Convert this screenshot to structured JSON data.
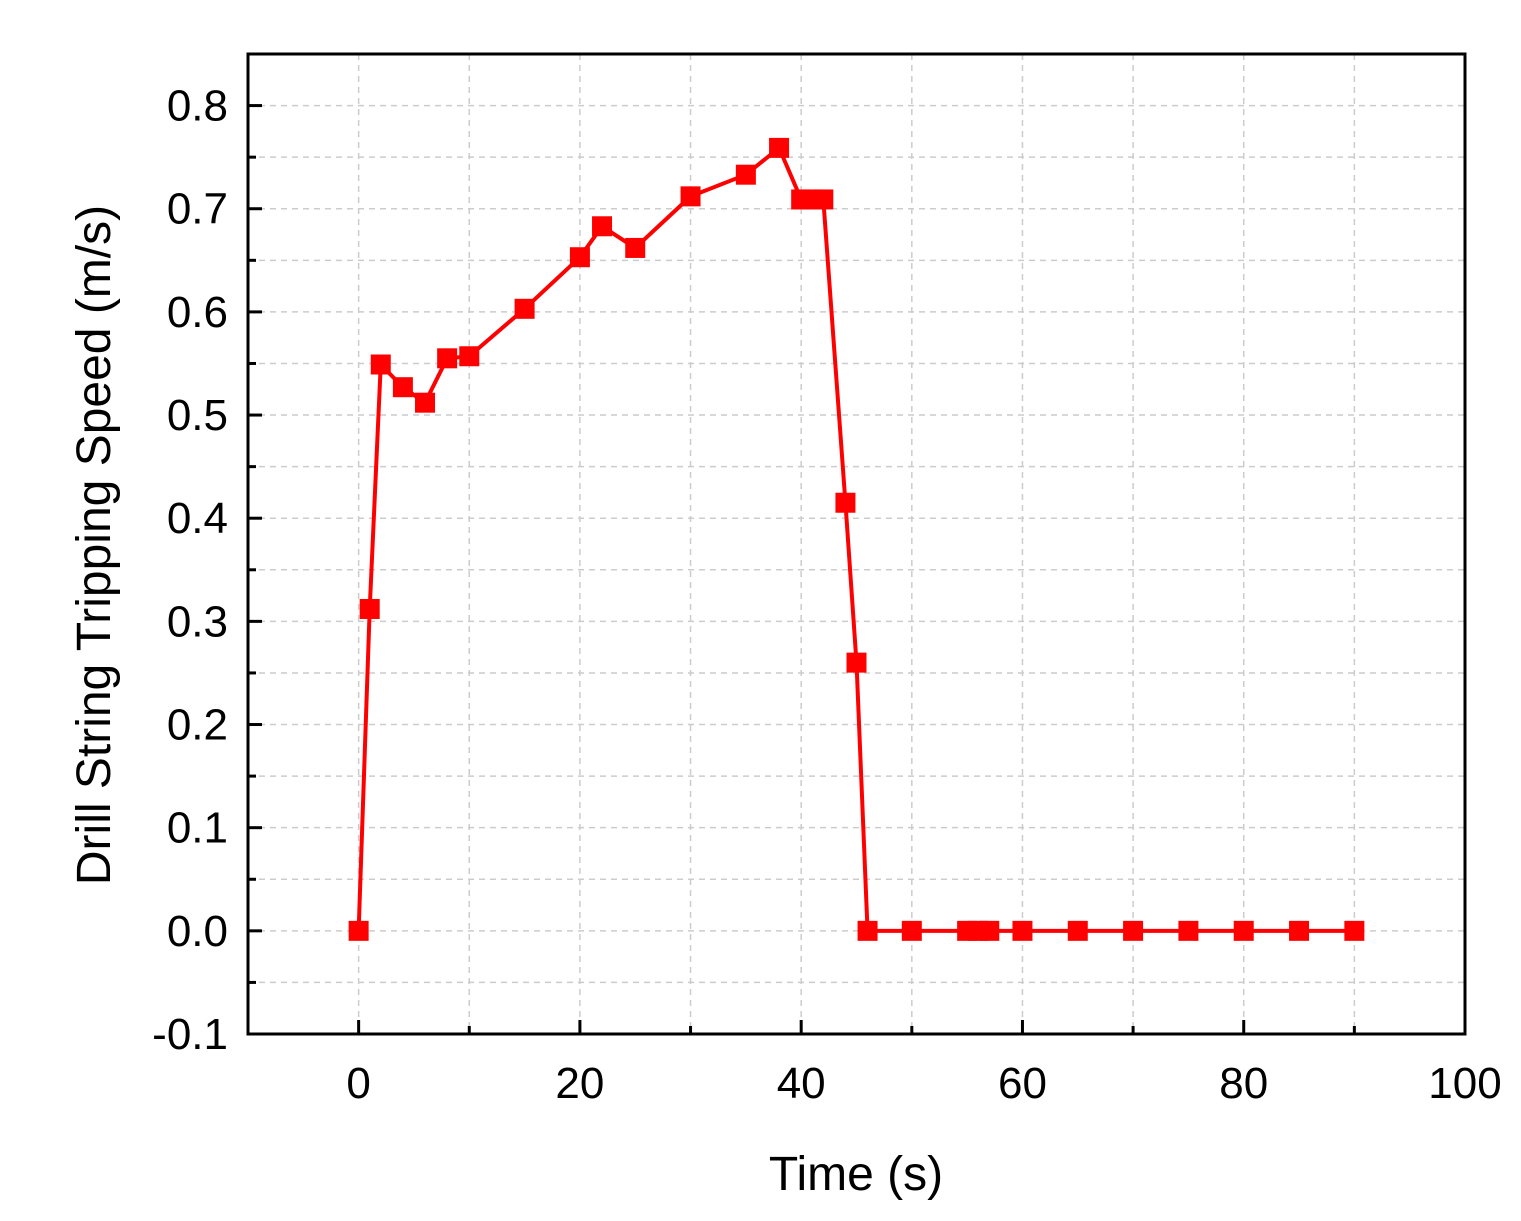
{
  "chart_data": {
    "type": "line",
    "title": "",
    "xlabel": "Time (s)",
    "ylabel": "Drill String Tripping Speed (m/s)",
    "xlim": [
      -10,
      100
    ],
    "ylim": [
      -0.1,
      0.85
    ],
    "x_ticks": [
      0,
      20,
      40,
      60,
      80,
      100
    ],
    "y_ticks": [
      -0.1,
      0.0,
      0.1,
      0.2,
      0.3,
      0.4,
      0.5,
      0.6,
      0.7,
      0.8
    ],
    "x_tick_labels": [
      "0",
      "20",
      "40",
      "60",
      "80",
      "100"
    ],
    "y_tick_labels": [
      "-0.1",
      "0.0",
      "0.1",
      "0.2",
      "0.3",
      "0.4",
      "0.5",
      "0.6",
      "0.7",
      "0.8"
    ],
    "grid": true,
    "legend": "none",
    "series": [
      {
        "color": "#ff0000",
        "marker": "square",
        "x": [
          0,
          1,
          2,
          4,
          6,
          8,
          10,
          15,
          20,
          22,
          25,
          30,
          35,
          38,
          40,
          41,
          42,
          44,
          45,
          46,
          50,
          55,
          56,
          57,
          60,
          65,
          70,
          75,
          80,
          85,
          90
        ],
        "y": [
          0.0,
          0.312,
          0.549,
          0.527,
          0.512,
          0.555,
          0.557,
          0.603,
          0.653,
          0.683,
          0.662,
          0.712,
          0.733,
          0.759,
          0.709,
          0.709,
          0.709,
          0.415,
          0.26,
          0.0,
          0.0,
          0.0,
          0.0,
          0.0,
          0.0,
          0.0,
          0.0,
          0.0,
          0.0,
          0.0,
          0.0
        ]
      }
    ]
  }
}
